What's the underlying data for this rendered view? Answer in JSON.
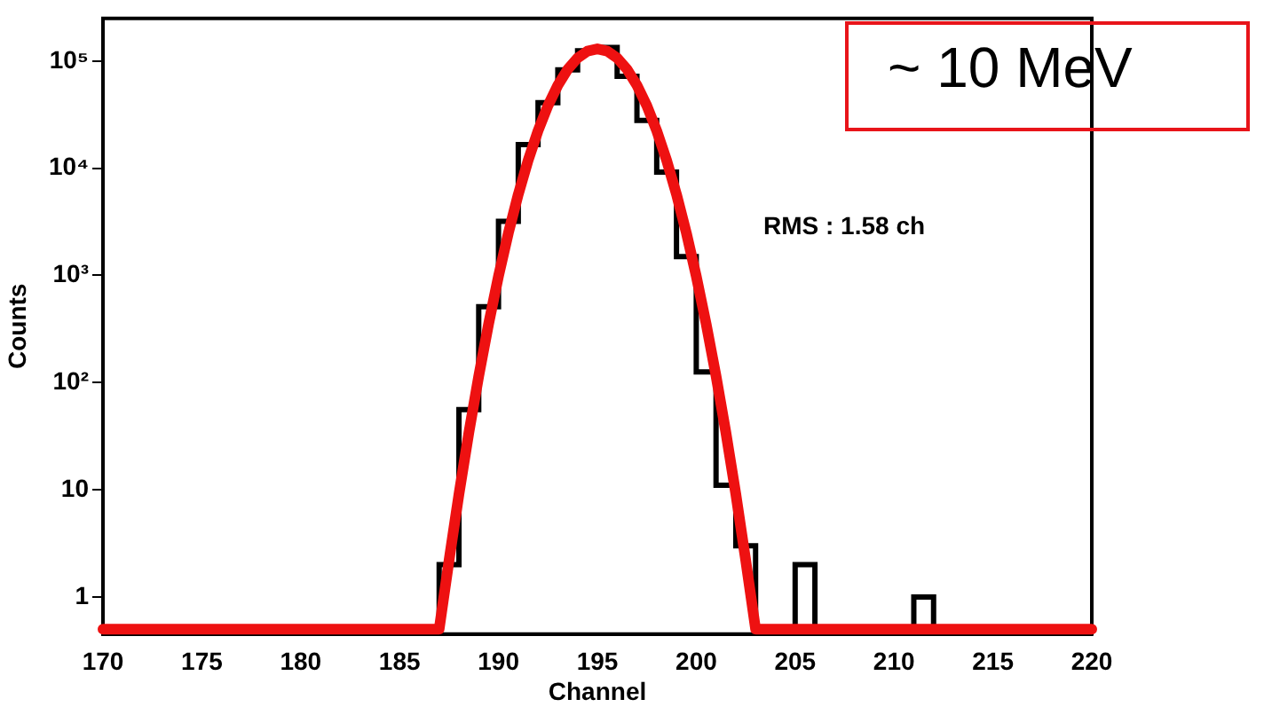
{
  "chart_data": {
    "type": "histogram",
    "xlabel": "Channel",
    "ylabel": "Counts",
    "log": "y",
    "grid": false,
    "legend": false,
    "xlim": [
      170,
      220
    ],
    "xticks": [
      170,
      175,
      180,
      185,
      190,
      195,
      200,
      205,
      210,
      215,
      220
    ],
    "ylim": [
      0.45,
      250000
    ],
    "yticks": [
      1,
      10,
      {
        "value": 100,
        "label": "10²"
      },
      {
        "value": 1000,
        "label": "10³"
      },
      {
        "value": 10000,
        "label": "10⁴"
      },
      {
        "value": 100000,
        "label": "10⁵"
      }
    ],
    "bins": [
      170,
      171,
      172,
      173,
      174,
      175,
      176,
      177,
      178,
      179,
      180,
      181,
      182,
      183,
      184,
      185,
      186,
      187,
      188,
      189,
      190,
      191,
      192,
      193,
      194,
      195,
      196,
      197,
      198,
      199,
      200,
      201,
      202,
      203,
      204,
      205,
      206,
      207,
      208,
      209,
      210,
      211,
      212,
      213,
      214,
      215,
      216,
      217,
      218,
      219,
      220
    ],
    "series": [
      {
        "type": "line",
        "color": "#ee1111",
        "x": [
          170,
          187,
          187.5,
          188,
          188.5,
          189,
          189.5,
          190,
          190.5,
          191,
          191.5,
          192,
          192.5,
          193,
          193.5,
          194,
          194.5,
          195,
          195.5,
          196,
          196.5,
          197,
          197.5,
          198,
          198.5,
          199,
          199.5,
          200,
          200.5,
          201,
          201.5,
          202,
          202.5,
          203,
          220
        ],
        "values": [
          0.5,
          0.5,
          2.2,
          9.1,
          34,
          115,
          353,
          984,
          2490,
          5710,
          11900,
          22400,
          38400,
          59500,
          83800,
          107000,
          124000,
          130000,
          124000,
          107000,
          83800,
          59500,
          38400,
          22400,
          11900,
          5710,
          2490,
          984,
          353,
          115,
          34,
          9.1,
          2.2,
          0.5,
          0.5
        ]
      },
      {
        "type": "histogram",
        "color": "#000000",
        "values": [
          null,
          null,
          null,
          null,
          null,
          null,
          null,
          null,
          null,
          null,
          null,
          null,
          null,
          null,
          null,
          null,
          null,
          2,
          56,
          510,
          3200,
          16600,
          41000,
          83000,
          125000,
          134000,
          72000,
          28000,
          9200,
          1500,
          126,
          11,
          3,
          null,
          null,
          2,
          null,
          null,
          null,
          null,
          null,
          1,
          null,
          null,
          null,
          null,
          null,
          null,
          null,
          null
        ]
      }
    ],
    "annotations": [
      "RMS : 1.58 ch",
      "~ 10 MeV"
    ]
  }
}
